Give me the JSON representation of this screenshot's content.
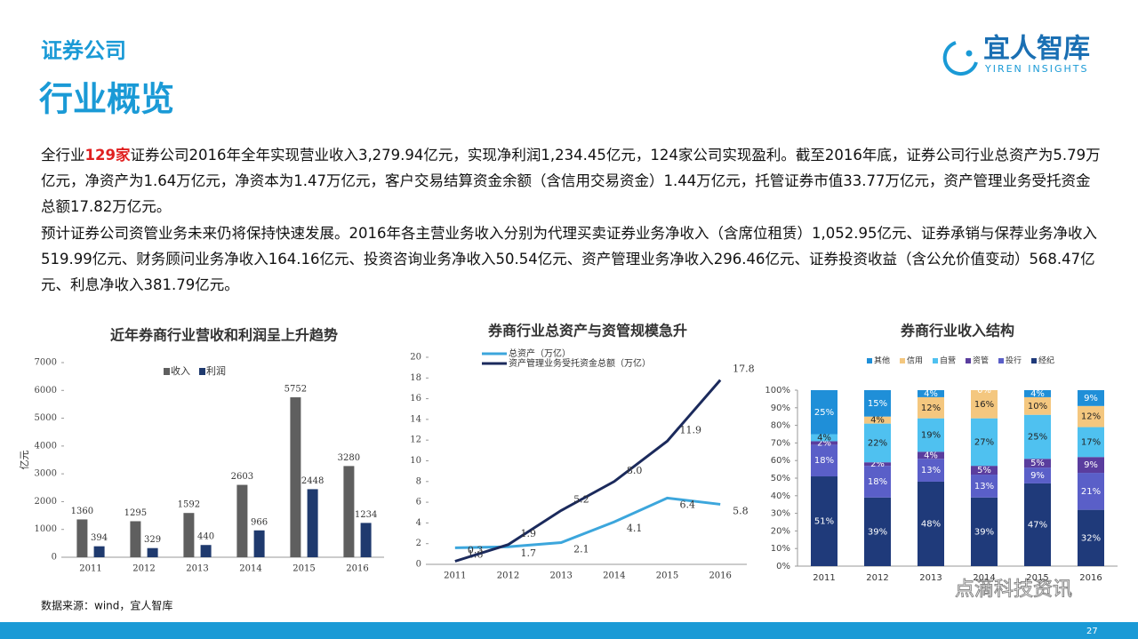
{
  "header": {
    "section": "证券公司",
    "title": "行业概览",
    "logo_cn": "宜人智库",
    "logo_en": "YIREN INSIGHTS"
  },
  "paragraphs": [
    {
      "before": "全行业",
      "highlight": "129家",
      "after": "证券公司2016年全年实现营业收入3,279.94亿元，实现净利润1,234.45亿元，124家公司实现盈利。截至2016年底，证券公司行业总资产为5.79万亿元，净资产为1.64万亿元，净资本为1.47万亿元，客户交易结算资金余额（含信用交易资金）1.44万亿元，托管证券市值33.77万亿元，资产管理业务受托资金总额17.82万亿元。"
    },
    {
      "text": "预计证券公司资管业务未来仍将保持快速发展。2016年各主营业务收入分别为代理买卖证券业务净收入（含席位租赁）1,052.95亿元、证券承销与保荐业务净收入519.99亿元、财务顾问业务净收入164.16亿元、投资咨询业务净收入50.54亿元、资产管理业务净收入296.46亿元、证券投资收益（含公允价值变动）568.47亿元、利息净收入381.79亿元。"
    }
  ],
  "chart_data": [
    {
      "type": "bar",
      "title": "近年券商行业营收和利润呈上升趋势",
      "y_label": "亿元",
      "categories": [
        "2011",
        "2012",
        "2013",
        "2014",
        "2015",
        "2016"
      ],
      "series": [
        {
          "name": "收入",
          "color": "#5f5f5f",
          "values": [
            1360,
            1295,
            1592,
            2603,
            5752,
            3280
          ]
        },
        {
          "name": "利润",
          "color": "#1f3a6e",
          "values": [
            394,
            329,
            440,
            966,
            2448,
            1234
          ]
        }
      ],
      "ylim": [
        0,
        7000
      ],
      "yticks": [
        0,
        1000,
        2000,
        3000,
        4000,
        5000,
        6000,
        7000
      ],
      "grid": false,
      "legend": "top"
    },
    {
      "type": "line",
      "title": "券商行业总资产与资管规模急升",
      "categories": [
        "2011",
        "2012",
        "2013",
        "2014",
        "2015",
        "2016"
      ],
      "series": [
        {
          "name": "总资产（万亿）",
          "color": "#3ca6dc",
          "values": [
            1.6,
            1.7,
            2.1,
            4.1,
            6.4,
            5.8
          ]
        },
        {
          "name": "资产管理业务受托资金总额（万亿）",
          "color": "#1b2a5c",
          "values": [
            0.3,
            1.9,
            5.2,
            8.0,
            11.9,
            17.8
          ],
          "value_labels": [
            "0.3",
            "1.9",
            "5.2",
            "8.0",
            "11.9",
            "17.8"
          ]
        }
      ],
      "ylim": [
        0,
        20
      ],
      "yticks": [
        0,
        2,
        4,
        6,
        8,
        10,
        12,
        14,
        16,
        18,
        20
      ],
      "grid": false,
      "legend": "top-left"
    },
    {
      "type": "bar",
      "stacked": true,
      "title": "券商行业收入结构",
      "categories": [
        "2011",
        "2012",
        "2013",
        "2014",
        "2015",
        "2016"
      ],
      "series": [
        {
          "name": "其他",
          "color": "#1f8fd8",
          "values": [
            25,
            15,
            4,
            0,
            4,
            9
          ],
          "value_labels": [
            "25%",
            "15%",
            "4%",
            "0%",
            "4%",
            "9%"
          ]
        },
        {
          "name": "信用",
          "color": "#f4c77f",
          "values": [
            0,
            4,
            12,
            16,
            10,
            12
          ],
          "value_labels": [
            null,
            "4%",
            "12%",
            "16%",
            "10%",
            "12%"
          ]
        },
        {
          "name": "自营",
          "color": "#4fc1f0",
          "values": [
            4,
            22,
            19,
            27,
            25,
            17
          ],
          "value_labels": [
            "4%",
            "22%",
            "19%",
            "27%",
            "25%",
            "17%"
          ]
        },
        {
          "name": "资管",
          "color": "#5a3d9e",
          "values": [
            2,
            2,
            4,
            5,
            5,
            9
          ],
          "value_labels": [
            "2%",
            "2%",
            "4%",
            "5%",
            "5%",
            "9%"
          ]
        },
        {
          "name": "投行",
          "color": "#5a5fc8",
          "values": [
            18,
            18,
            13,
            13,
            9,
            21
          ],
          "value_labels": [
            "18%",
            "18%",
            "13%",
            "13%",
            "9%",
            "21%"
          ]
        },
        {
          "name": "经纪",
          "color": "#1f3a7a",
          "values": [
            51,
            39,
            48,
            39,
            47,
            32
          ],
          "value_labels": [
            "51%",
            "39%",
            "48%",
            "39%",
            "47%",
            "32%"
          ]
        }
      ],
      "ylim": [
        0,
        100
      ],
      "yticks": [
        {
          "value": 0,
          "label": "0%"
        },
        {
          "value": 10,
          "label": "10%"
        },
        {
          "value": 20,
          "label": "20%"
        },
        {
          "value": 30,
          "label": "30%"
        },
        {
          "value": 40,
          "label": "40%"
        },
        {
          "value": 50,
          "label": "50%"
        },
        {
          "value": 60,
          "label": "60%"
        },
        {
          "value": 70,
          "label": "70%"
        },
        {
          "value": 80,
          "label": "80%"
        },
        {
          "value": 90,
          "label": "90%"
        },
        {
          "value": 100,
          "label": "100%"
        }
      ],
      "grid": false,
      "legend": "top"
    }
  ],
  "source": "数据来源：wind，宜人智库",
  "watermark": "点滴科技资讯",
  "page_number": "27"
}
